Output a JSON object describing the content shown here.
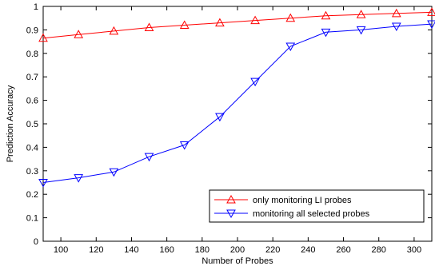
{
  "chart_data": {
    "type": "line",
    "title": "",
    "xlabel": "Number of Probes",
    "ylabel": "Prediction Accuracy",
    "xlim": [
      90,
      310
    ],
    "ylim": [
      0,
      1
    ],
    "xticks": [
      100,
      120,
      140,
      160,
      180,
      200,
      220,
      240,
      260,
      280,
      300
    ],
    "yticks": [
      0,
      0.1,
      0.2,
      0.3,
      0.4,
      0.5,
      0.6,
      0.7,
      0.8,
      0.9,
      1
    ],
    "ytick_labels": [
      "0",
      "0.1",
      "0.2",
      "0.3",
      "0.4",
      "0.5",
      "0.6",
      "0.7",
      "0.8",
      "0.9",
      "1"
    ],
    "grid": false,
    "legend_position": "bottom-right",
    "x": [
      90,
      110,
      130,
      150,
      170,
      190,
      210,
      230,
      250,
      270,
      290,
      310
    ],
    "series": [
      {
        "name": "only monitoring LI probes",
        "color": "#ff0000",
        "marker": "triangle-up",
        "values": [
          0.865,
          0.88,
          0.895,
          0.91,
          0.92,
          0.93,
          0.94,
          0.95,
          0.96,
          0.965,
          0.97,
          0.975
        ]
      },
      {
        "name": "monitoring all selected probes",
        "color": "#0000ff",
        "marker": "triangle-down",
        "values": [
          0.25,
          0.27,
          0.295,
          0.36,
          0.41,
          0.53,
          0.68,
          0.83,
          0.89,
          0.9,
          0.915,
          0.925
        ]
      }
    ]
  }
}
